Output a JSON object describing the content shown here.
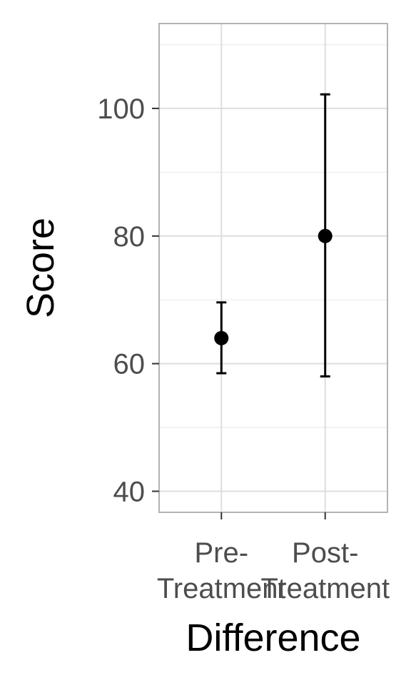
{
  "chart_data": {
    "type": "errorbar",
    "categories": [
      "Pre-\nTreatment",
      "Post-\nTreatment"
    ],
    "points": [
      {
        "category": "Pre-\nTreatment",
        "mean": 64,
        "lower": 58.5,
        "upper": 69.6
      },
      {
        "category": "Post-\nTreatment",
        "mean": 80,
        "lower": 58,
        "upper": 102.2
      }
    ],
    "xlabel": "Difference",
    "ylabel": "Score",
    "ylim": [
      36.7,
      113.3
    ],
    "yticks": [
      40,
      60,
      80,
      100
    ],
    "grid": true,
    "colors": {
      "point": "#000000",
      "panel_border": "#b3b3b3",
      "grid_major": "#dedede",
      "grid_minor": "#ececec",
      "tick_text": "#4d4d4d"
    }
  }
}
